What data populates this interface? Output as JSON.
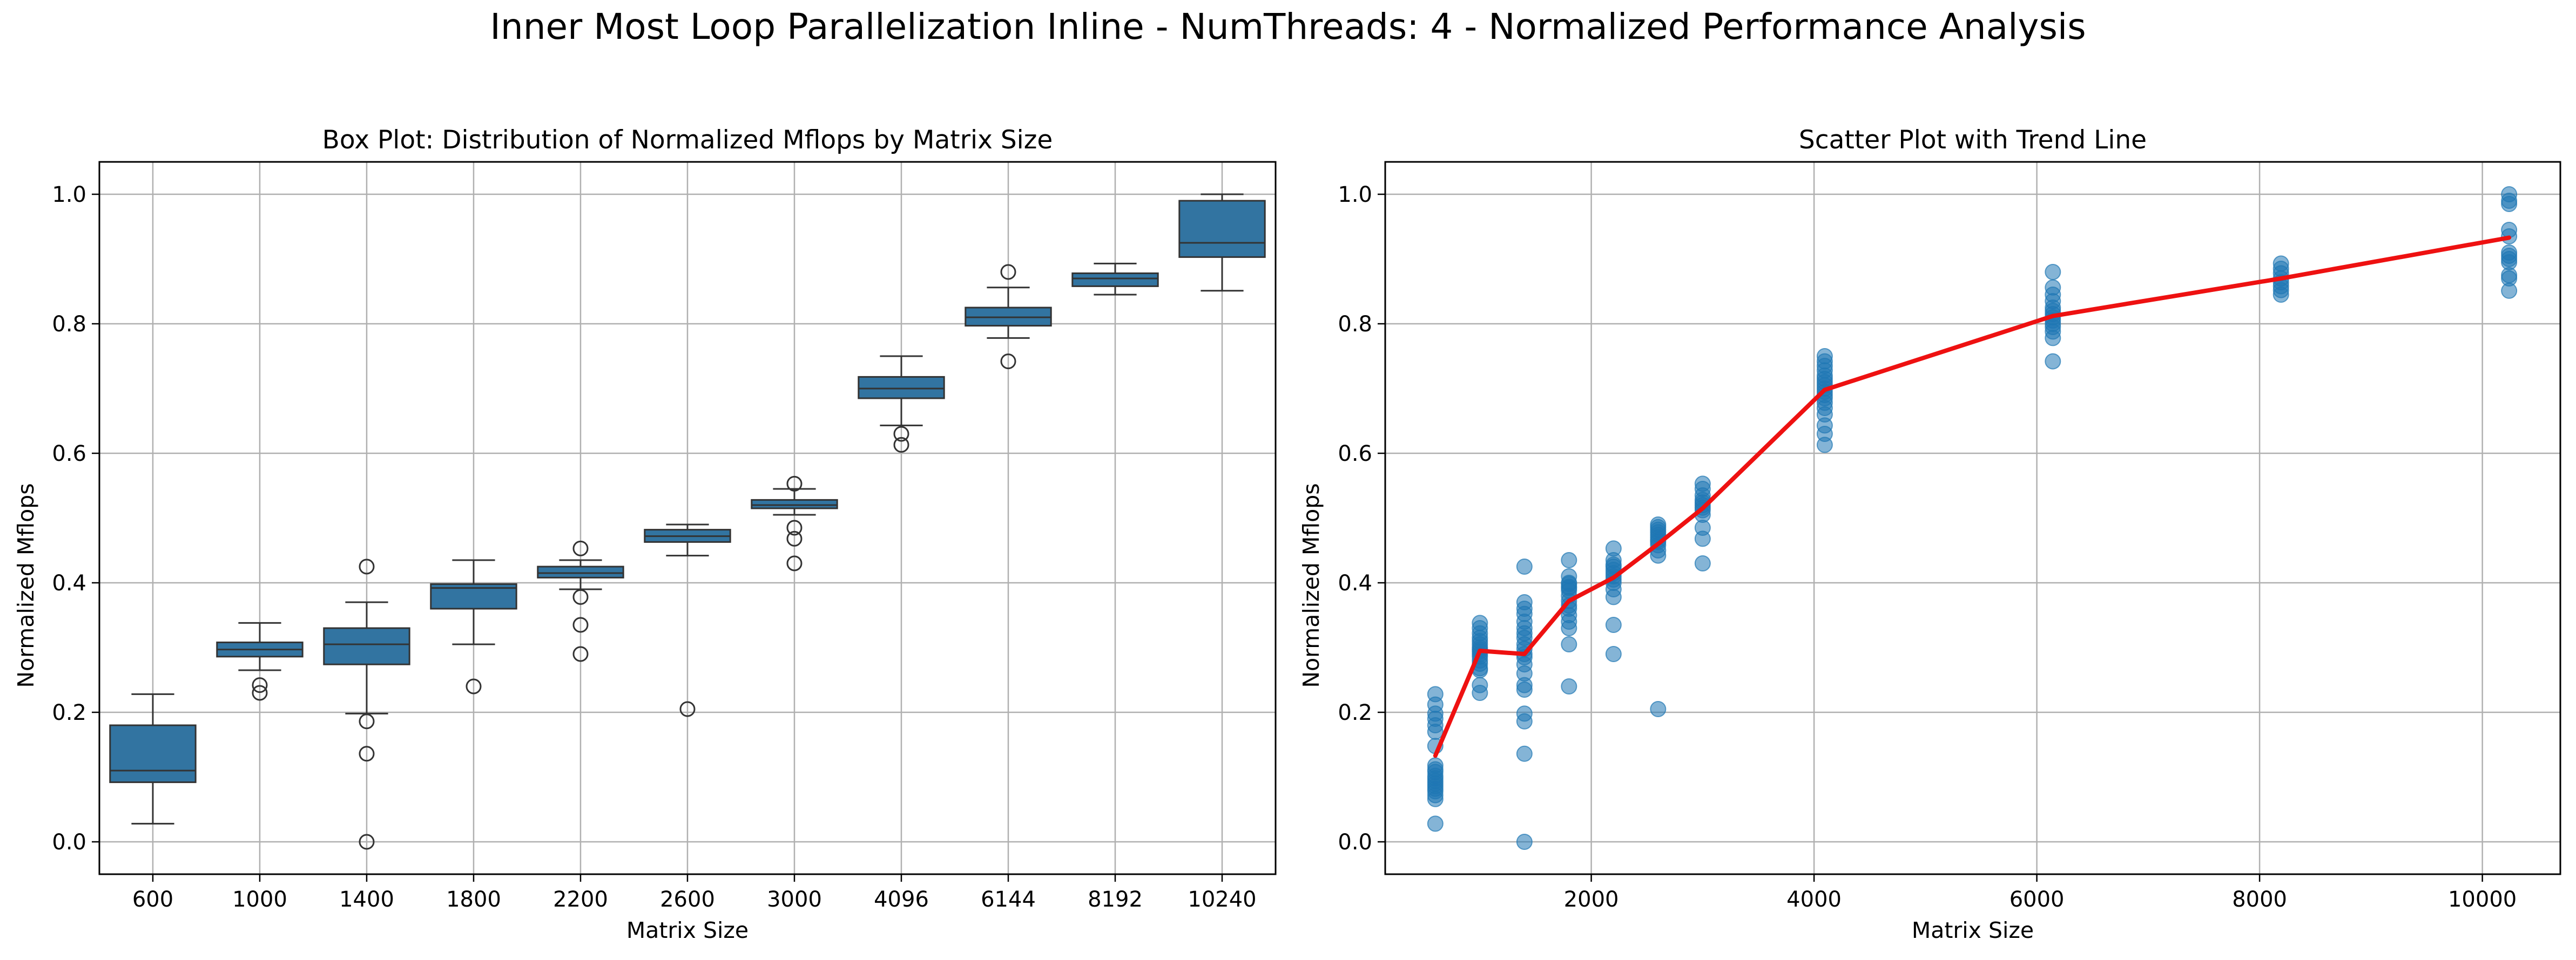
{
  "figure": {
    "suptitle": "Inner Most Loop Parallelization Inline - NumThreads: 4 - Normalized Performance Analysis"
  },
  "colors": {
    "box_fill": "#3274a1",
    "scatter_point": "#1f77b4",
    "trend_line": "#ee1111",
    "grid": "#b0b0b0",
    "median_whisker": "#333333"
  },
  "chart_data": [
    {
      "type": "box",
      "title": "Box Plot: Distribution of Normalized Mflops by Matrix Size",
      "xlabel": "Matrix Size",
      "ylabel": "Normalized Mflops",
      "ylim": [
        -0.05,
        1.05
      ],
      "yticks": [
        0.0,
        0.2,
        0.4,
        0.6,
        0.8,
        1.0
      ],
      "grid": true,
      "categories": [
        "600",
        "1000",
        "1400",
        "1800",
        "2200",
        "2600",
        "3000",
        "4096",
        "6144",
        "8192",
        "10240"
      ],
      "boxes": [
        {
          "min": 0.028,
          "q1": 0.092,
          "median": 0.11,
          "q3": 0.18,
          "max": 0.228,
          "outliers": []
        },
        {
          "min": 0.265,
          "q1": 0.286,
          "median": 0.297,
          "q3": 0.308,
          "max": 0.338,
          "outliers": [
            0.242,
            0.23
          ]
        },
        {
          "min": 0.198,
          "q1": 0.274,
          "median": 0.305,
          "q3": 0.33,
          "max": 0.37,
          "outliers": [
            0.425,
            0.186,
            0.136,
            0.0
          ]
        },
        {
          "min": 0.305,
          "q1": 0.36,
          "median": 0.392,
          "q3": 0.398,
          "max": 0.435,
          "outliers": [
            0.24
          ]
        },
        {
          "min": 0.39,
          "q1": 0.408,
          "median": 0.415,
          "q3": 0.425,
          "max": 0.435,
          "outliers": [
            0.453,
            0.378,
            0.335,
            0.29
          ]
        },
        {
          "min": 0.442,
          "q1": 0.463,
          "median": 0.472,
          "q3": 0.482,
          "max": 0.49,
          "outliers": [
            0.205
          ]
        },
        {
          "min": 0.505,
          "q1": 0.515,
          "median": 0.52,
          "q3": 0.528,
          "max": 0.545,
          "outliers": [
            0.553,
            0.485,
            0.468,
            0.43
          ]
        },
        {
          "min": 0.643,
          "q1": 0.685,
          "median": 0.7,
          "q3": 0.718,
          "max": 0.75,
          "outliers": [
            0.63,
            0.613
          ]
        },
        {
          "min": 0.778,
          "q1": 0.797,
          "median": 0.81,
          "q3": 0.825,
          "max": 0.856,
          "outliers": [
            0.88,
            0.742
          ]
        },
        {
          "min": 0.845,
          "q1": 0.858,
          "median": 0.87,
          "q3": 0.878,
          "max": 0.893,
          "outliers": []
        },
        {
          "min": 0.851,
          "q1": 0.903,
          "median": 0.925,
          "q3": 0.99,
          "max": 1.0,
          "outliers": []
        }
      ]
    },
    {
      "type": "scatter",
      "title": "Scatter Plot with Trend Line",
      "xlabel": "Matrix Size",
      "ylabel": "Normalized Mflops",
      "xlim": [
        150,
        10700
      ],
      "ylim": [
        -0.05,
        1.05
      ],
      "xticks": [
        2000,
        4000,
        6000,
        8000,
        10000
      ],
      "yticks": [
        0.0,
        0.2,
        0.4,
        0.6,
        0.8,
        1.0
      ],
      "grid": true,
      "points": [
        {
          "x": 600,
          "y": [
            0.228,
            0.212,
            0.198,
            0.19,
            0.18,
            0.17,
            0.148,
            0.118,
            0.112,
            0.108,
            0.102,
            0.098,
            0.094,
            0.09,
            0.086,
            0.082,
            0.078,
            0.072,
            0.066,
            0.028
          ]
        },
        {
          "x": 1000,
          "y": [
            0.338,
            0.33,
            0.322,
            0.315,
            0.31,
            0.305,
            0.3,
            0.297,
            0.294,
            0.29,
            0.286,
            0.28,
            0.275,
            0.268,
            0.265,
            0.242,
            0.23
          ]
        },
        {
          "x": 1400,
          "y": [
            0.425,
            0.37,
            0.36,
            0.352,
            0.34,
            0.33,
            0.322,
            0.315,
            0.305,
            0.298,
            0.29,
            0.285,
            0.274,
            0.26,
            0.242,
            0.235,
            0.198,
            0.186,
            0.136,
            0.0
          ]
        },
        {
          "x": 1800,
          "y": [
            0.435,
            0.41,
            0.4,
            0.398,
            0.394,
            0.392,
            0.388,
            0.38,
            0.372,
            0.365,
            0.36,
            0.35,
            0.34,
            0.33,
            0.305,
            0.24
          ]
        },
        {
          "x": 2200,
          "y": [
            0.453,
            0.435,
            0.428,
            0.425,
            0.42,
            0.415,
            0.41,
            0.405,
            0.4,
            0.39,
            0.378,
            0.335,
            0.29
          ]
        },
        {
          "x": 2600,
          "y": [
            0.49,
            0.486,
            0.482,
            0.478,
            0.474,
            0.47,
            0.466,
            0.463,
            0.458,
            0.45,
            0.442,
            0.205
          ]
        },
        {
          "x": 3000,
          "y": [
            0.553,
            0.545,
            0.535,
            0.528,
            0.524,
            0.52,
            0.516,
            0.512,
            0.505,
            0.485,
            0.468,
            0.43
          ]
        },
        {
          "x": 4096,
          "y": [
            0.75,
            0.742,
            0.735,
            0.728,
            0.72,
            0.715,
            0.71,
            0.705,
            0.7,
            0.695,
            0.69,
            0.685,
            0.678,
            0.67,
            0.66,
            0.643,
            0.63,
            0.613
          ]
        },
        {
          "x": 6144,
          "y": [
            0.88,
            0.856,
            0.845,
            0.835,
            0.825,
            0.82,
            0.815,
            0.81,
            0.805,
            0.8,
            0.795,
            0.788,
            0.778,
            0.742
          ]
        },
        {
          "x": 8192,
          "y": [
            0.893,
            0.885,
            0.878,
            0.87,
            0.864,
            0.858,
            0.852,
            0.845
          ]
        },
        {
          "x": 10240,
          "y": [
            1.0,
            0.99,
            0.985,
            0.945,
            0.935,
            0.91,
            0.905,
            0.9,
            0.895,
            0.875,
            0.87,
            0.851
          ]
        }
      ],
      "trend_line": {
        "x": [
          600,
          1000,
          1400,
          1800,
          2200,
          2600,
          3000,
          4096,
          6144,
          8192,
          10240
        ],
        "y": [
          0.133,
          0.295,
          0.29,
          0.372,
          0.408,
          0.46,
          0.515,
          0.698,
          0.812,
          0.87,
          0.933
        ]
      }
    }
  ]
}
